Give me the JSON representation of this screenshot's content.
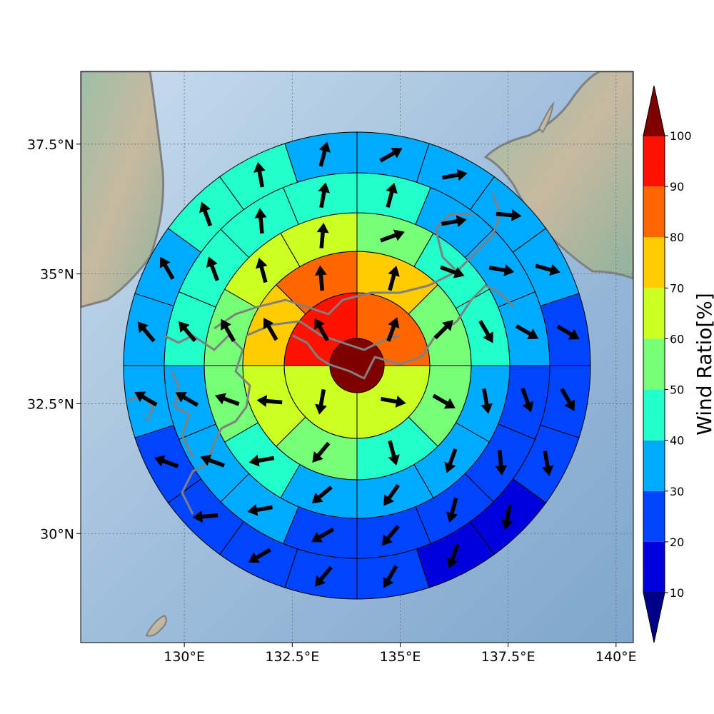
{
  "chart_data": {
    "type": "polar-sector-map",
    "x_ticks": [
      "130°E",
      "132.5°E",
      "135°E",
      "137.5°E",
      "140°E"
    ],
    "x_tick_values": [
      130,
      132.5,
      135,
      137.5,
      140
    ],
    "y_ticks": [
      "37.5°N",
      "35°N",
      "32.5°N",
      "30°N"
    ],
    "y_tick_values": [
      37.5,
      35,
      32.5,
      30
    ],
    "lon_range": [
      127.6,
      140.4
    ],
    "lat_range": [
      27.9,
      38.9
    ],
    "grid": "dotted",
    "colorbar": {
      "label": "Wind Ratio[%]",
      "tick_labels": [
        "10",
        "20",
        "30",
        "40",
        "50",
        "60",
        "70",
        "80",
        "90",
        "100"
      ],
      "levels": [
        10,
        20,
        30,
        40,
        50,
        60,
        70,
        80,
        90,
        100
      ],
      "colors": [
        "#0000dd",
        "#0044ff",
        "#00aaff",
        "#22ffcc",
        "#77ff77",
        "#ccff22",
        "#ffcc00",
        "#ff6600",
        "#ff1100"
      ],
      "under_color": "#00008b",
      "over_color": "#800000",
      "extend": "both"
    },
    "center_value": 100,
    "rings": [
      {
        "ring": 1,
        "sectors": 4,
        "values": [
          85,
          65,
          65,
          95
        ],
        "directions": [
          20,
          100,
          190,
          330
        ]
      },
      {
        "ring": 2,
        "sectors": 8,
        "values": [
          75,
          55,
          55,
          45,
          55,
          65,
          75,
          85
        ],
        "directions": [
          15,
          45,
          120,
          165,
          220,
          275,
          330,
          355
        ]
      },
      {
        "ring": 3,
        "sectors": 12,
        "values": [
          55,
          45,
          45,
          35,
          35,
          35,
          35,
          45,
          55,
          55,
          65,
          65
        ],
        "directions": [
          70,
          110,
          150,
          170,
          200,
          215,
          230,
          260,
          290,
          330,
          345,
          5
        ]
      },
      {
        "ring": 4,
        "sectors": 16,
        "values": [
          45,
          35,
          35,
          35,
          25,
          25,
          25,
          25,
          25,
          35,
          35,
          35,
          45,
          45,
          45,
          45
        ],
        "directions": [
          15,
          80,
          100,
          120,
          160,
          175,
          195,
          220,
          240,
          260,
          290,
          300,
          320,
          340,
          355,
          10
        ]
      },
      {
        "ring": 5,
        "sectors": 20,
        "values": [
          35,
          35,
          35,
          35,
          25,
          25,
          25,
          15,
          15,
          25,
          25,
          25,
          25,
          25,
          35,
          35,
          35,
          45,
          45,
          35
        ],
        "directions": [
          60,
          80,
          95,
          105,
          120,
          150,
          170,
          190,
          200,
          210,
          220,
          240,
          265,
          290,
          300,
          320,
          330,
          340,
          350,
          15
        ]
      }
    ]
  }
}
